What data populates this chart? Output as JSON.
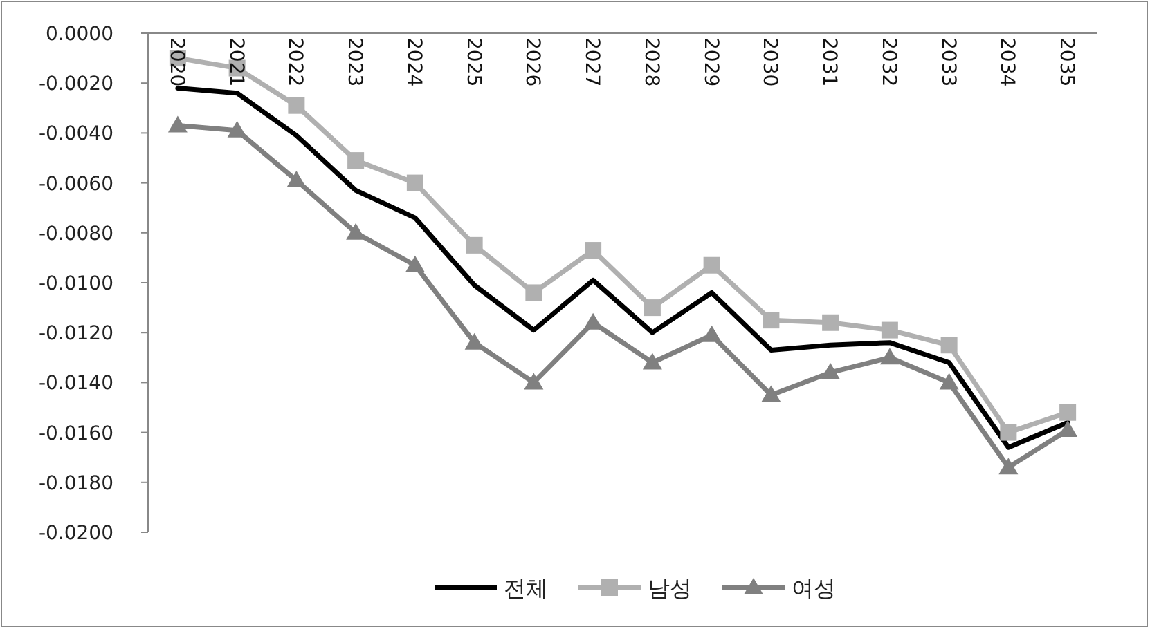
{
  "chart_data": {
    "type": "line",
    "categories": [
      "2020",
      "2021",
      "2022",
      "2023",
      "2024",
      "2025",
      "2026",
      "2027",
      "2028",
      "2029",
      "2030",
      "2031",
      "2032",
      "2033",
      "2034",
      "2035"
    ],
    "series": [
      {
        "name": "전체",
        "color": "#000000",
        "marker": "none",
        "values": [
          -0.0022,
          -0.0024,
          -0.0041,
          -0.0063,
          -0.0074,
          -0.0101,
          -0.0119,
          -0.0099,
          -0.012,
          -0.0104,
          -0.0127,
          -0.0125,
          -0.0124,
          -0.0132,
          -0.0166,
          -0.0156
        ]
      },
      {
        "name": "남성",
        "color": "#b0b0b0",
        "marker": "square",
        "values": [
          -0.001,
          -0.0014,
          -0.0029,
          -0.0051,
          -0.006,
          -0.0085,
          -0.0104,
          -0.0087,
          -0.011,
          -0.0093,
          -0.0115,
          -0.0116,
          -0.0119,
          -0.0125,
          -0.016,
          -0.0152
        ]
      },
      {
        "name": "여성",
        "color": "#808080",
        "marker": "triangle",
        "values": [
          -0.0037,
          -0.0039,
          -0.0059,
          -0.008,
          -0.0093,
          -0.0124,
          -0.014,
          -0.0116,
          -0.0132,
          -0.0121,
          -0.0145,
          -0.0136,
          -0.013,
          -0.014,
          -0.0174,
          -0.0159
        ]
      }
    ],
    "ylim": [
      -0.02,
      0
    ],
    "yticks": [
      {
        "value": 0,
        "label": "0.0000"
      },
      {
        "value": -0.002,
        "label": "-0.0020"
      },
      {
        "value": -0.004,
        "label": "-0.0040"
      },
      {
        "value": -0.006,
        "label": "-0.0060"
      },
      {
        "value": -0.008,
        "label": "-0.0080"
      },
      {
        "value": -0.01,
        "label": "-0.0100"
      },
      {
        "value": -0.012,
        "label": "-0.0120"
      },
      {
        "value": -0.014,
        "label": "-0.0140"
      },
      {
        "value": -0.016,
        "label": "-0.0160"
      },
      {
        "value": -0.018,
        "label": "-0.0180"
      },
      {
        "value": -0.02,
        "label": "-0.0200"
      }
    ],
    "legend": "bottom"
  }
}
